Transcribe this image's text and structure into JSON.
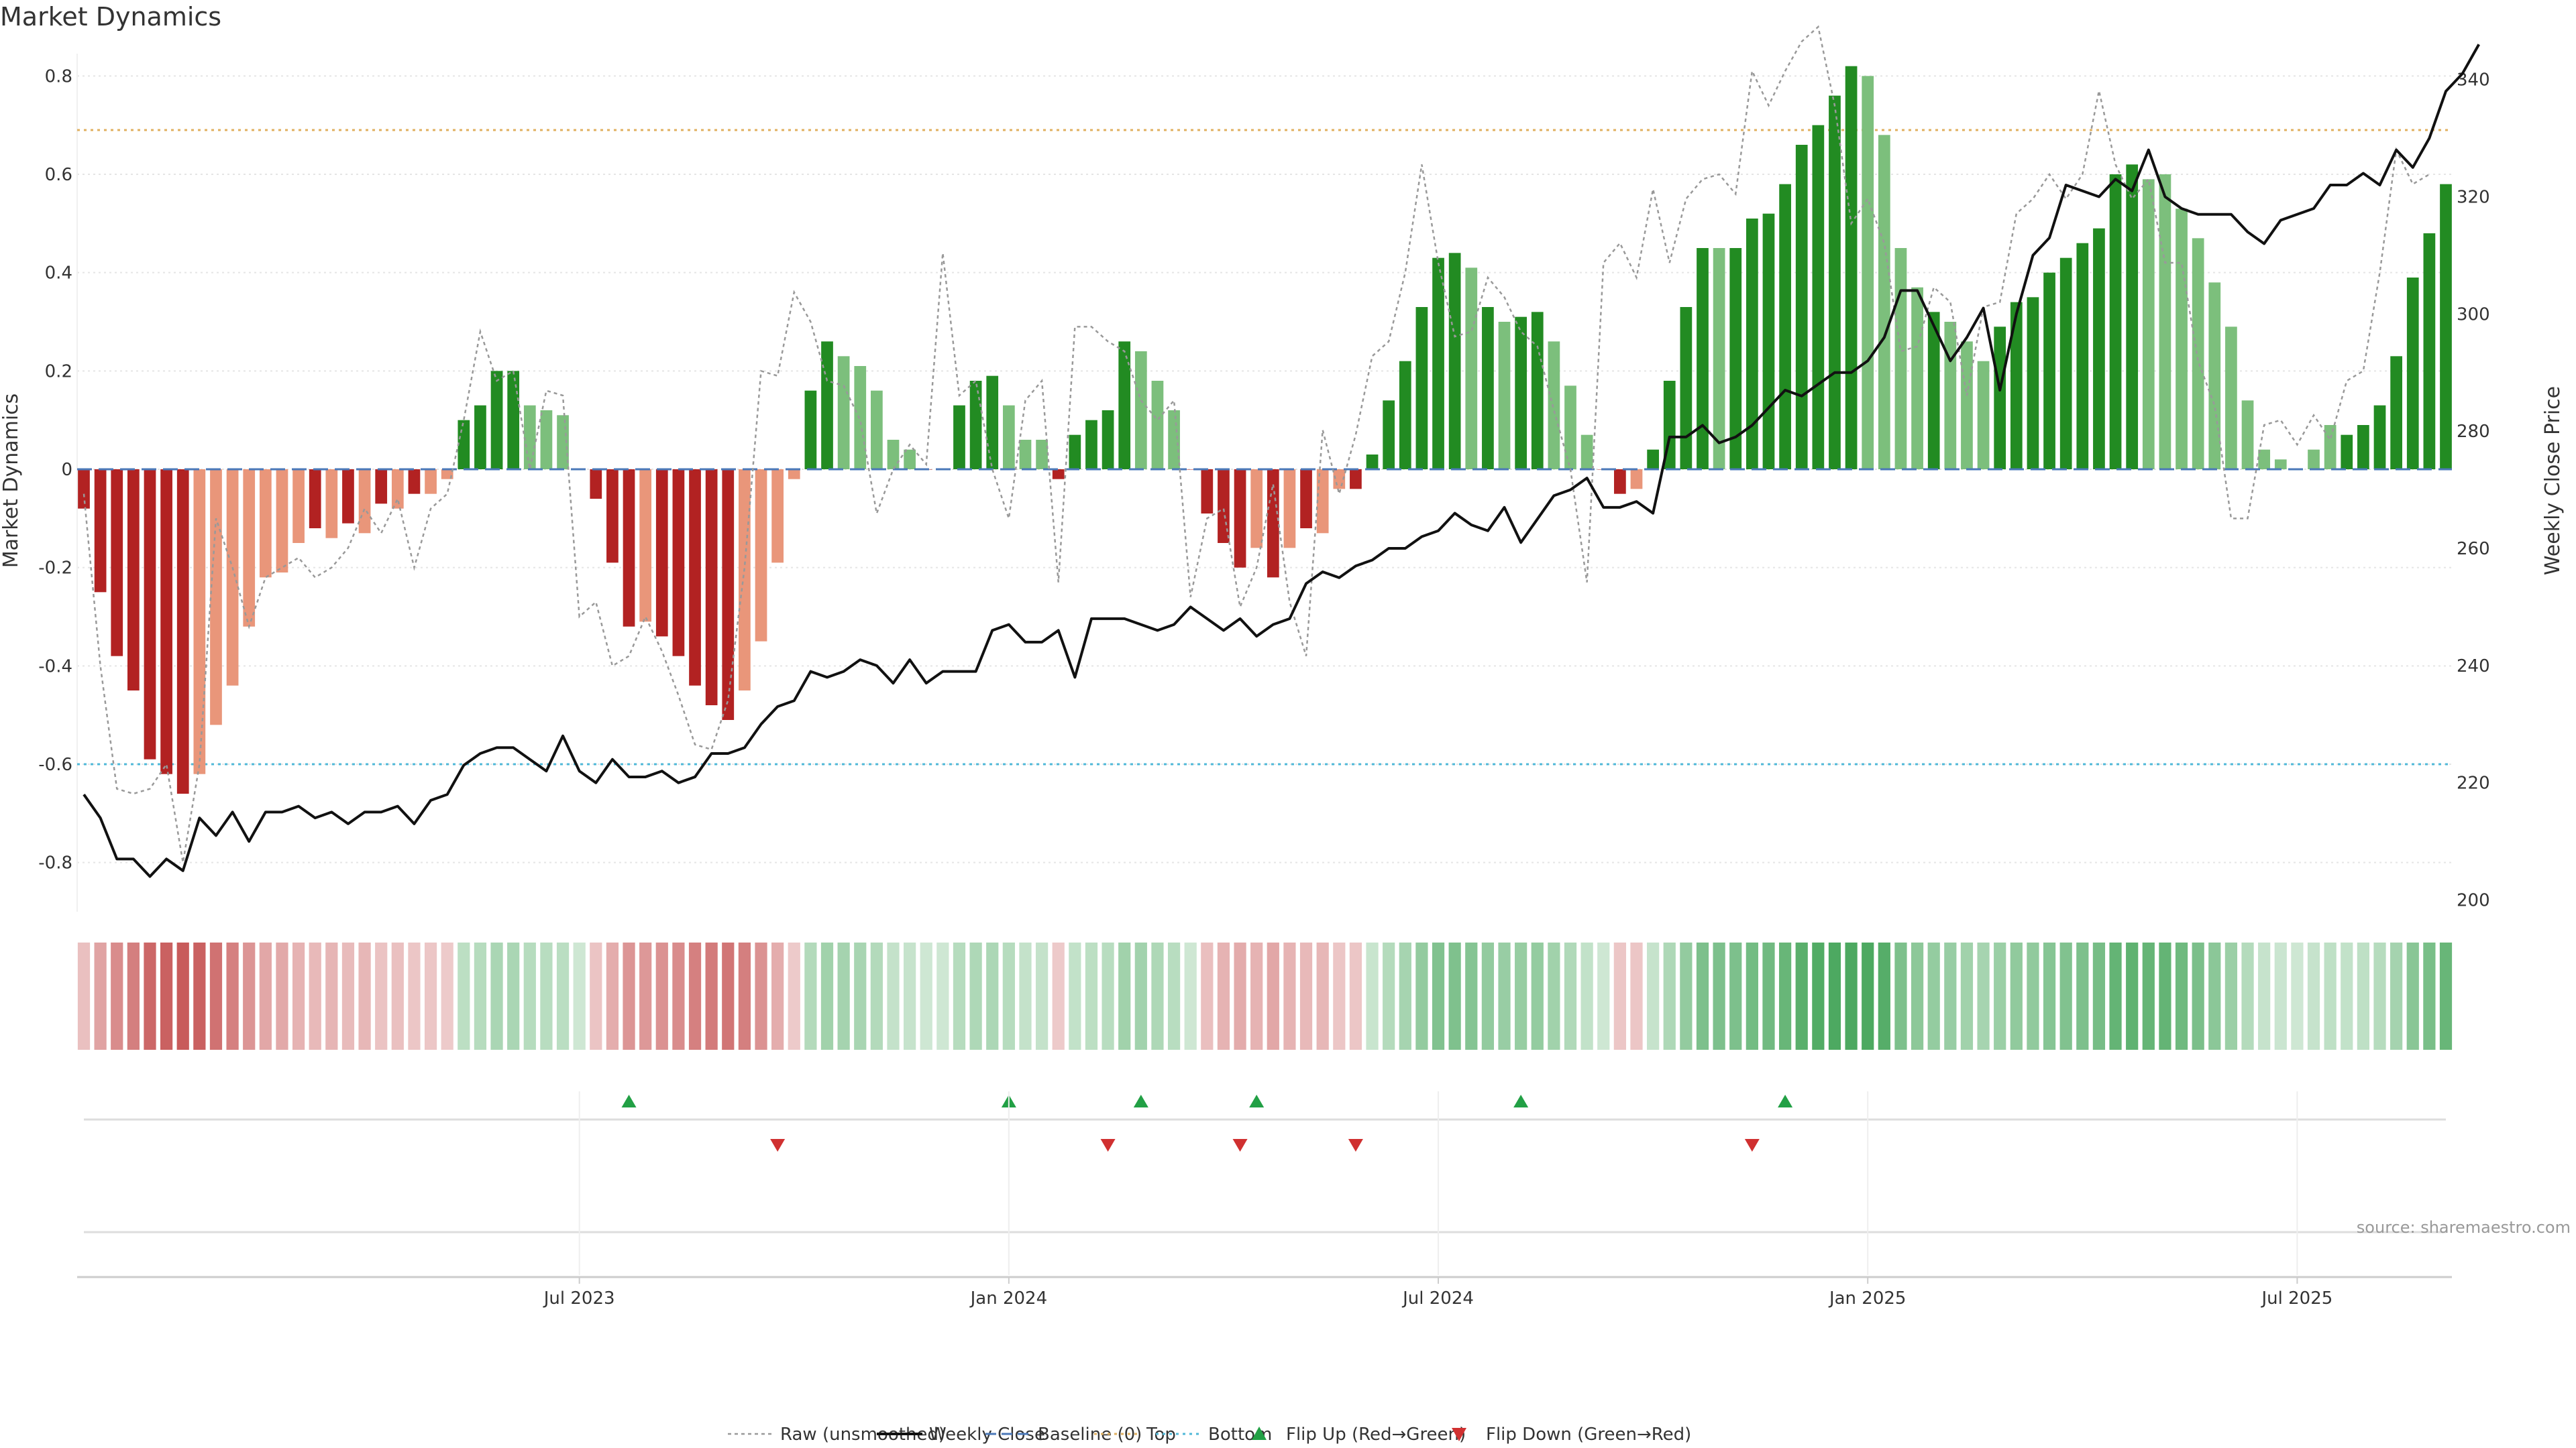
{
  "chart_data": {
    "type": "bar",
    "title": "Market Dynamics",
    "ylabel_left": "Market Dynamics",
    "ylabel_right": "Weekly Close Price",
    "source_note": "source: sharemaestro.com",
    "left_ylim": [
      -0.9,
      0.9
    ],
    "left_ticks": [
      -0.8,
      -0.6,
      -0.4,
      -0.2,
      0,
      0.2,
      0.4,
      0.6,
      0.8
    ],
    "right_ylim": [
      198,
      349
    ],
    "right_ticks": [
      200,
      220,
      240,
      260,
      280,
      300,
      320,
      340
    ],
    "top_threshold": 0.69,
    "bottom_threshold": -0.6,
    "x_start": "2023-01-09",
    "x_ticks": [
      {
        "label": "Jul 2023",
        "index": 30
      },
      {
        "label": "Jan 2024",
        "index": 56
      },
      {
        "label": "Jul 2024",
        "index": 82
      },
      {
        "label": "Jan 2025",
        "index": 108
      },
      {
        "label": "Jul 2025",
        "index": 134
      }
    ],
    "bar_styles": {
      "strong_negative": "#b22222",
      "weak_negative": "#e9967a",
      "strong_positive": "#228b22",
      "weak_positive": "#7cbf7c"
    },
    "series": [
      {
        "name": "Market Dynamics",
        "values": [
          -0.08,
          -0.25,
          -0.38,
          -0.45,
          -0.59,
          -0.62,
          -0.66,
          -0.62,
          -0.52,
          -0.44,
          -0.32,
          -0.22,
          -0.21,
          -0.15,
          -0.12,
          -0.14,
          -0.11,
          -0.13,
          -0.07,
          -0.08,
          -0.05,
          -0.05,
          -0.02,
          0.1,
          0.13,
          0.2,
          0.2,
          0.13,
          0.12,
          0.11,
          0.0,
          -0.06,
          -0.19,
          -0.32,
          -0.31,
          -0.34,
          -0.38,
          -0.44,
          -0.48,
          -0.51,
          -0.45,
          -0.35,
          -0.19,
          -0.02,
          0.16,
          0.26,
          0.23,
          0.21,
          0.16,
          0.06,
          0.04,
          0.0,
          0.0,
          0.13,
          0.18,
          0.19,
          0.13,
          0.06,
          0.06,
          -0.02,
          0.07,
          0.1,
          0.12,
          0.26,
          0.24,
          0.18,
          0.12,
          0.0,
          -0.09,
          -0.15,
          -0.2,
          -0.16,
          -0.22,
          -0.16,
          -0.12,
          -0.13,
          -0.04,
          -0.04,
          0.03,
          0.14,
          0.22,
          0.33,
          0.43,
          0.44,
          0.41,
          0.33,
          0.3,
          0.31,
          0.32,
          0.26,
          0.17,
          0.07,
          0.0,
          -0.05,
          -0.04,
          0.04,
          0.18,
          0.33,
          0.45,
          0.45,
          0.45,
          0.51,
          0.52,
          0.58,
          0.66,
          0.7,
          0.76,
          0.82,
          0.8,
          0.68,
          0.45,
          0.37,
          0.32,
          0.3,
          0.26,
          0.22,
          0.29,
          0.34,
          0.35,
          0.4,
          0.43,
          0.46,
          0.49,
          0.6,
          0.62,
          0.59,
          0.6,
          0.53,
          0.47,
          0.38,
          0.29,
          0.14,
          0.04,
          0.02,
          0.0,
          0.04,
          0.09,
          0.07,
          0.09,
          0.13,
          0.23,
          0.39,
          0.48,
          0.58
        ],
        "styles": [
          "sn",
          "sn",
          "sn",
          "sn",
          "sn",
          "sn",
          "sn",
          "wn",
          "wn",
          "wn",
          "wn",
          "wn",
          "wn",
          "wn",
          "sn",
          "wn",
          "sn",
          "wn",
          "sn",
          "wn",
          "sn",
          "wn",
          "wn",
          "sp",
          "sp",
          "sp",
          "sp",
          "wp",
          "wp",
          "wp",
          "wn",
          "sn",
          "sn",
          "sn",
          "wn",
          "sn",
          "sn",
          "sn",
          "sn",
          "sn",
          "wn",
          "wn",
          "wn",
          "wn",
          "sp",
          "sp",
          "wp",
          "wp",
          "wp",
          "wp",
          "wp",
          "sn",
          "sn",
          "sp",
          "sp",
          "sp",
          "wp",
          "wp",
          "wp",
          "sn",
          "sp",
          "sp",
          "sp",
          "sp",
          "wp",
          "wp",
          "wp",
          "sn",
          "sn",
          "sn",
          "sn",
          "wn",
          "sn",
          "wn",
          "sn",
          "wn",
          "wn",
          "sn",
          "sp",
          "sp",
          "sp",
          "sp",
          "sp",
          "sp",
          "wp",
          "sp",
          "wp",
          "sp",
          "sp",
          "wp",
          "wp",
          "wp",
          "sn",
          "sn",
          "wn",
          "sp",
          "sp",
          "sp",
          "sp",
          "wp",
          "sp",
          "sp",
          "sp",
          "sp",
          "sp",
          "sp",
          "sp",
          "sp",
          "wp",
          "wp",
          "wp",
          "wp",
          "sp",
          "wp",
          "wp",
          "wp",
          "sp",
          "sp",
          "sp",
          "sp",
          "sp",
          "sp",
          "sp",
          "sp",
          "sp",
          "wp",
          "wp",
          "wp",
          "wp",
          "wp",
          "wp",
          "wp",
          "wp",
          "wp",
          "wp",
          "wp",
          "wp",
          "sp",
          "sp",
          "sp",
          "sp",
          "sp",
          "sp",
          "sp",
          "sp",
          "sp"
        ]
      },
      {
        "name": "Raw (unsmoothed)",
        "values": [
          -0.05,
          -0.4,
          -0.65,
          -0.66,
          -0.65,
          -0.6,
          -0.8,
          -0.6,
          -0.1,
          -0.2,
          -0.32,
          -0.22,
          -0.2,
          -0.18,
          -0.22,
          -0.2,
          -0.16,
          -0.08,
          -0.13,
          -0.06,
          -0.2,
          -0.08,
          -0.05,
          0.1,
          0.28,
          0.18,
          0.2,
          0.0,
          0.16,
          0.15,
          -0.3,
          -0.27,
          -0.4,
          -0.38,
          -0.3,
          -0.37,
          -0.46,
          -0.56,
          -0.57,
          -0.47,
          -0.2,
          0.2,
          0.19,
          0.36,
          0.3,
          0.18,
          0.17,
          0.1,
          -0.09,
          0.0,
          0.05,
          0.01,
          0.44,
          0.15,
          0.18,
          0.0,
          -0.1,
          0.14,
          0.18,
          -0.23,
          0.29,
          0.29,
          0.26,
          0.24,
          0.14,
          0.1,
          0.14,
          -0.26,
          -0.1,
          -0.08,
          -0.28,
          -0.2,
          -0.03,
          -0.27,
          -0.38,
          0.08,
          -0.05,
          0.07,
          0.23,
          0.26,
          0.4,
          0.62,
          0.42,
          0.27,
          0.28,
          0.39,
          0.35,
          0.28,
          0.25,
          0.12,
          0.0,
          -0.23,
          0.42,
          0.46,
          0.39,
          0.57,
          0.42,
          0.55,
          0.59,
          0.6,
          0.56,
          0.81,
          0.74,
          0.81,
          0.87,
          0.9,
          0.74,
          0.5,
          0.55,
          0.46,
          0.24,
          0.25,
          0.37,
          0.34,
          0.15,
          0.33,
          0.34,
          0.52,
          0.55,
          0.6,
          0.55,
          0.6,
          0.77,
          0.62,
          0.55,
          0.59,
          0.42,
          0.42,
          0.22,
          0.13,
          -0.1,
          -0.1,
          0.09,
          0.1,
          0.05,
          0.11,
          0.06,
          0.18,
          0.2,
          0.4,
          0.65,
          0.58,
          0.6
        ]
      },
      {
        "name": "Weekly Close",
        "values": [
          218,
          214,
          207,
          207,
          204,
          207,
          205,
          214,
          211,
          215,
          210,
          215,
          215,
          216,
          214,
          215,
          213,
          215,
          215,
          216,
          213,
          217,
          218,
          223,
          225,
          226,
          226,
          224,
          222,
          228,
          222,
          220,
          224,
          221,
          221,
          222,
          220,
          221,
          225,
          225,
          226,
          230,
          233,
          234,
          239,
          238,
          239,
          241,
          240,
          237,
          241,
          237,
          239,
          239,
          239,
          246,
          247,
          244,
          244,
          246,
          238,
          248,
          248,
          248,
          247,
          246,
          247,
          250,
          248,
          246,
          248,
          245,
          247,
          248,
          254,
          256,
          255,
          257,
          258,
          260,
          260,
          262,
          263,
          266,
          264,
          263,
          267,
          261,
          265,
          269,
          270,
          272,
          267,
          267,
          268,
          266,
          279,
          279,
          281,
          278,
          279,
          281,
          284,
          287,
          286,
          288,
          290,
          290,
          292,
          296,
          304,
          304,
          298,
          292,
          296,
          301,
          287,
          300,
          310,
          313,
          322,
          321,
          320,
          323,
          321,
          328,
          320,
          318,
          317,
          317,
          317,
          314,
          312,
          316,
          317,
          318,
          322,
          322,
          324,
          322,
          328,
          325,
          330,
          338,
          341,
          346
        ]
      }
    ],
    "flip_up": [
      33,
      56,
      64,
      71,
      87,
      103
    ],
    "flip_down": [
      42,
      62,
      70,
      77,
      101
    ],
    "legend": [
      "Raw (unsmoothed)",
      "Weekly Close",
      "Baseline (0)",
      "Top",
      "Bottom",
      "Flip Up (Red→Green)",
      "Flip Down (Green→Red)"
    ],
    "legend_position": "bottom-center",
    "grid": true
  }
}
